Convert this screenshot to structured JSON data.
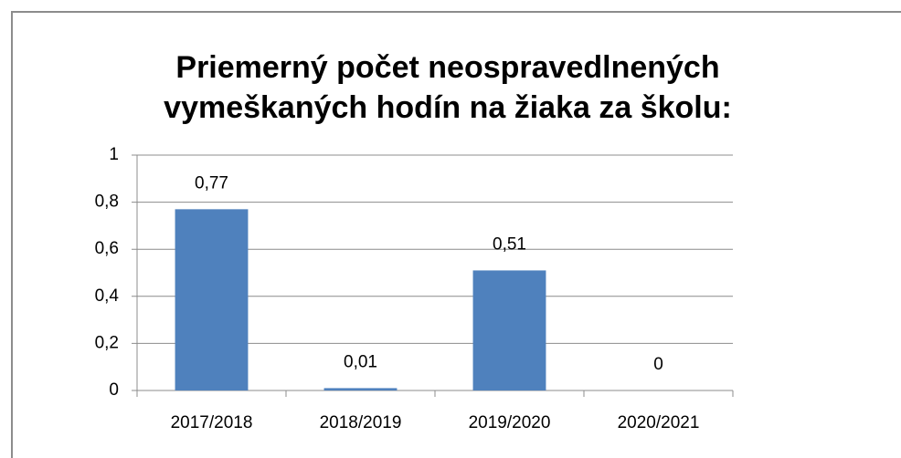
{
  "chart_data": {
    "type": "bar",
    "title": "Priemerný počet neospravedlnených vymeškaných hodín na žiaka za školu:",
    "categories": [
      "2017/2018",
      "2018/2019",
      "2019/2020",
      "2020/2021"
    ],
    "values": [
      0.77,
      0.01,
      0.51,
      0
    ],
    "value_labels": [
      "0,77",
      "0,01",
      "0,51",
      "0"
    ],
    "color": "#4f81bd",
    "ylim": [
      0,
      1
    ],
    "yticks": [
      0,
      {
        "value": 0.2,
        "label": "0,2"
      },
      {
        "value": 0.4,
        "label": "0,4"
      },
      {
        "value": 0.6,
        "label": "0,6"
      },
      {
        "value": 0.8,
        "label": "0,8"
      },
      1
    ],
    "grid": true
  }
}
